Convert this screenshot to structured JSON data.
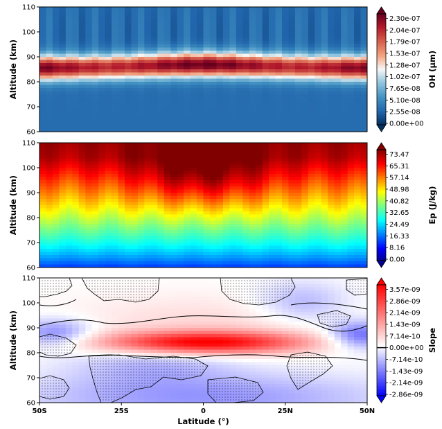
{
  "chart_data": [
    {
      "type": "heatmap",
      "panel": "top",
      "ylabel": "Altitude (km)",
      "y_ticks": [
        60,
        70,
        80,
        90,
        100,
        110
      ],
      "ylim": [
        60,
        110
      ],
      "xlim": [
        -50,
        50
      ],
      "colorbar": {
        "label": "OH (μm)",
        "colormap": "RdBu_r",
        "ticks": [
          "0.00e+00",
          "2.55e-08",
          "5.10e-08",
          "7.65e-08",
          "1.02e-07",
          "1.28e-07",
          "1.53e-07",
          "1.79e-07",
          "2.04e-07",
          "2.30e-07"
        ]
      },
      "field": {
        "description": "OH layer peaking near 85 km; values high around 82-90 km, low above 95 km and below 78 km",
        "peak_altitude_km": 85.5,
        "max_value": 2.3e-07
      }
    },
    {
      "type": "heatmap",
      "panel": "middle",
      "ylabel": "Altitude (km)",
      "y_ticks": [
        60,
        70,
        80,
        90,
        100,
        110
      ],
      "ylim": [
        60,
        110
      ],
      "xlim": [
        -50,
        50
      ],
      "colorbar": {
        "label": "Ep (J/kg)",
        "colormap": "jet",
        "ticks": [
          "0.00",
          "8.16",
          "16.33",
          "24.49",
          "32.65",
          "40.82",
          "48.98",
          "57.14",
          "65.31",
          "73.47"
        ]
      },
      "field": {
        "description": "Ep increasing with altitude; maximum near equator at ~97 km",
        "peak_altitude_km": 97,
        "max_value": 73.47
      }
    },
    {
      "type": "heatmap",
      "panel": "bottom",
      "ylabel": "Altitude (km)",
      "xlabel": "Latitude (°)",
      "x_ticks": [
        "50S",
        "25S",
        "0",
        "25N",
        "50N"
      ],
      "x_tick_values": [
        -50,
        -25,
        0,
        25,
        50
      ],
      "y_ticks": [
        60,
        70,
        80,
        90,
        100,
        110
      ],
      "ylim": [
        60,
        110
      ],
      "xlim": [
        -50,
        50
      ],
      "colorbar": {
        "label": "Slope",
        "colormap": "bwr",
        "ticks": [
          "-2.86e-09",
          "-2.14e-09",
          "-1.43e-09",
          "-7.14e-10",
          "0.00e+00",
          "7.14e-10",
          "1.43e-09",
          "2.14e-09",
          "2.86e-09",
          "3.57e-09"
        ]
      },
      "field": {
        "description": "Positive slope band centered near 84 km between 20S and 20N; weak negative values elsewhere; stippling marks insignificant regions",
        "peak_altitude_km": 84,
        "max_value": 3.57e-09
      }
    }
  ]
}
